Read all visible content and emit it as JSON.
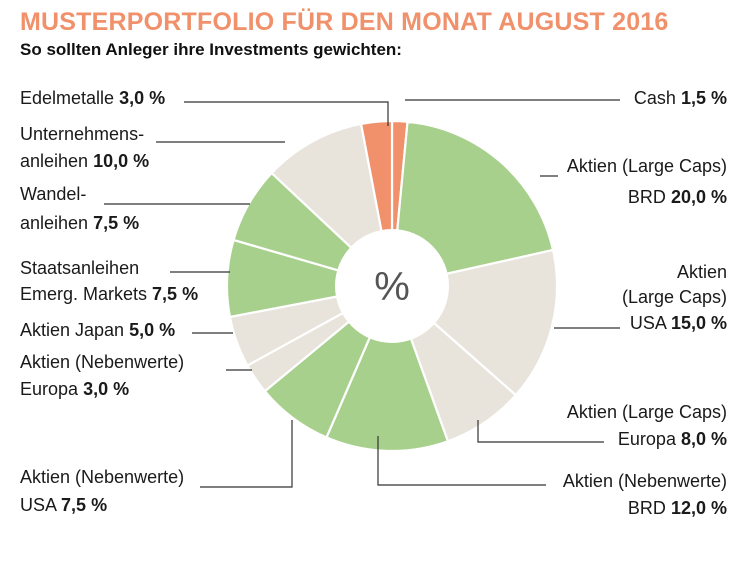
{
  "header": {
    "title": "MUSTERPORTFOLIO FÜR DEN MONAT AUGUST 2016",
    "subtitle": "So sollten Anleger ihre Investments gewichten:"
  },
  "chart_data": {
    "type": "pie",
    "title": "MUSTERPORTFOLIO FÜR DEN MONAT AUGUST 2016",
    "subtitle": "So sollten Anleger ihre Investments gewichten:",
    "center_label": "%",
    "unit": "%",
    "colors": {
      "orange": "#f0916c",
      "green": "#a8d08d",
      "beige": "#e8e4dc"
    },
    "slices": [
      {
        "label_lines": [
          "Cash"
        ],
        "value_text": "1,5 %",
        "value": 1.5,
        "color": "orange"
      },
      {
        "label_lines": [
          "Aktien (Large Caps)",
          "BRD"
        ],
        "value_text": "20,0 %",
        "value": 20.0,
        "color": "green"
      },
      {
        "label_lines": [
          "Aktien",
          "(Large Caps)",
          "USA"
        ],
        "value_text": "15,0 %",
        "value": 15.0,
        "color": "beige"
      },
      {
        "label_lines": [
          "Aktien (Large Caps)",
          "Europa"
        ],
        "value_text": "8,0 %",
        "value": 8.0,
        "color": "beige"
      },
      {
        "label_lines": [
          "Aktien (Nebenwerte)",
          "BRD"
        ],
        "value_text": "12,0 %",
        "value": 12.0,
        "color": "green"
      },
      {
        "label_lines": [
          "Aktien (Nebenwerte)",
          "USA"
        ],
        "value_text": "7,5 %",
        "value": 7.5,
        "color": "green"
      },
      {
        "label_lines": [
          "Aktien (Nebenwerte)",
          "Europa"
        ],
        "value_text": "3,0 %",
        "value": 3.0,
        "color": "beige"
      },
      {
        "label_lines": [
          "Aktien Japan"
        ],
        "value_text": "5,0 %",
        "value": 5.0,
        "color": "beige"
      },
      {
        "label_lines": [
          "Staatsanleihen",
          "Emerg. Markets"
        ],
        "value_text": "7,5 %",
        "value": 7.5,
        "color": "green"
      },
      {
        "label_lines": [
          "Wandel-",
          "anleihen"
        ],
        "value_text": "7,5 %",
        "value": 7.5,
        "color": "green"
      },
      {
        "label_lines": [
          "Unternehmens-",
          "anleihen"
        ],
        "value_text": "10,0 %",
        "value": 10.0,
        "color": "beige"
      },
      {
        "label_lines": [
          "Edelmetalle"
        ],
        "value_text": "3,0 %",
        "value": 3.0,
        "color": "orange"
      }
    ]
  }
}
